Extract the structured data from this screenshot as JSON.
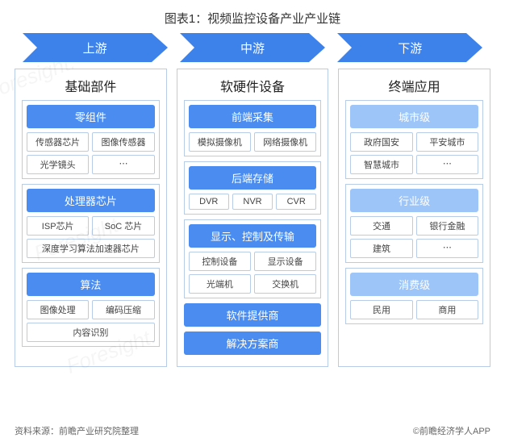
{
  "title": "图表1：视频监控设备产业产业链",
  "colors": {
    "arrow_fill": "#3d82ea",
    "section_primary": "#4a8cef",
    "section_light": "#9ec5f7",
    "border": "#b8cce8",
    "text": "#333333",
    "item_text": "#444444"
  },
  "arrows": [
    "上游",
    "中游",
    "下游"
  ],
  "columns": [
    {
      "header": "基础部件",
      "sections": [
        {
          "title": "零组件",
          "style": "primary",
          "items": [
            {
              "label": "传感器芯片",
              "w": "half"
            },
            {
              "label": "图像传感器",
              "w": "half"
            },
            {
              "label": "光学镜头",
              "w": "half"
            },
            {
              "label": "⋯",
              "w": "half"
            }
          ]
        },
        {
          "title": "处理器芯片",
          "style": "primary",
          "items": [
            {
              "label": "ISP芯片",
              "w": "half"
            },
            {
              "label": "SoC 芯片",
              "w": "half"
            },
            {
              "label": "深度学习算法加速器芯片",
              "w": "full"
            }
          ]
        },
        {
          "title": "算法",
          "style": "primary",
          "items": [
            {
              "label": "图像处理",
              "w": "half"
            },
            {
              "label": "编码压缩",
              "w": "half"
            },
            {
              "label": "内容识别",
              "w": "full"
            }
          ]
        }
      ]
    },
    {
      "header": "软硬件设备",
      "sections": [
        {
          "title": "前端采集",
          "style": "primary",
          "items": [
            {
              "label": "模拟摄像机",
              "w": "half"
            },
            {
              "label": "网络摄像机",
              "w": "half"
            }
          ]
        },
        {
          "title": "后端存储",
          "style": "primary",
          "items": [
            {
              "label": "DVR",
              "w": "third"
            },
            {
              "label": "NVR",
              "w": "third"
            },
            {
              "label": "CVR",
              "w": "third"
            }
          ]
        },
        {
          "title": "显示、控制及传输",
          "style": "primary",
          "items": [
            {
              "label": "控制设备",
              "w": "half"
            },
            {
              "label": "显示设备",
              "w": "half"
            },
            {
              "label": "光端机",
              "w": "half"
            },
            {
              "label": "交换机",
              "w": "half"
            }
          ]
        },
        {
          "title": "软件提供商",
          "style": "primary",
          "items": [],
          "no_border": true
        },
        {
          "title": "解决方案商",
          "style": "primary",
          "items": [],
          "no_border": true
        }
      ]
    },
    {
      "header": "终端应用",
      "sections": [
        {
          "title": "城市级",
          "style": "light",
          "items": [
            {
              "label": "政府国安",
              "w": "half"
            },
            {
              "label": "平安城市",
              "w": "half"
            },
            {
              "label": "智慧城市",
              "w": "half"
            },
            {
              "label": "⋯",
              "w": "half"
            }
          ]
        },
        {
          "title": "行业级",
          "style": "light",
          "items": [
            {
              "label": "交通",
              "w": "half"
            },
            {
              "label": "银行金融",
              "w": "half"
            },
            {
              "label": "建筑",
              "w": "half"
            },
            {
              "label": "⋯",
              "w": "half"
            }
          ]
        },
        {
          "title": "消费级",
          "style": "light",
          "items": [
            {
              "label": "民用",
              "w": "half"
            },
            {
              "label": "商用",
              "w": "half"
            }
          ]
        }
      ]
    }
  ],
  "footer": {
    "left": "资料来源：前瞻产业研究院整理",
    "right": "©前瞻经济学人APP"
  },
  "watermark": "Foresight."
}
